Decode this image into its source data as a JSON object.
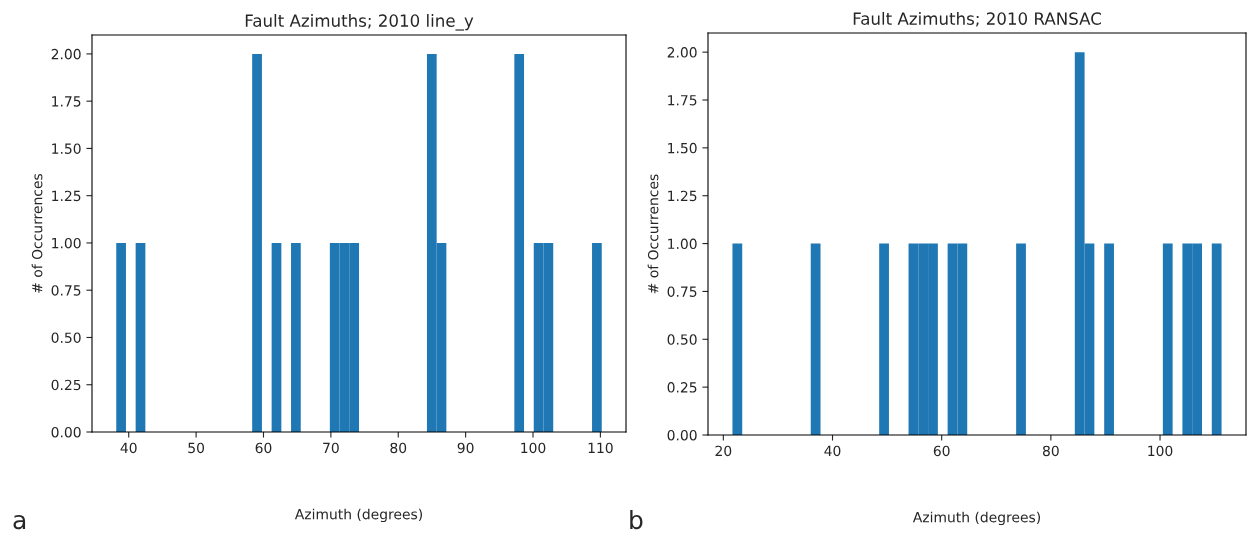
{
  "chart_data": [
    {
      "type": "histogram",
      "title": "Fault Azimuths; 2010 line_y",
      "xlabel": "Azimuth (degrees)",
      "ylabel": "# of Occurrences",
      "color": "#1f77b4",
      "bins": [
        38.15,
        39.59,
        41.03,
        42.47,
        43.91,
        45.36,
        46.8,
        48.24,
        49.68,
        51.12,
        52.56,
        54.0,
        55.44,
        56.88,
        58.32,
        59.77,
        61.21,
        62.65,
        64.09,
        65.53,
        66.97,
        68.41,
        69.85,
        71.29,
        72.73,
        74.18,
        75.62,
        77.06,
        78.5,
        79.94,
        81.38,
        82.82,
        84.26,
        85.7,
        87.14,
        88.59,
        90.03,
        91.47,
        92.91,
        94.35,
        95.79,
        97.23,
        98.67,
        100.11,
        101.55,
        103.0,
        104.44,
        105.88,
        107.32,
        108.76,
        110.2
      ],
      "values": [
        1,
        0,
        1,
        0,
        0,
        0,
        0,
        0,
        0,
        0,
        0,
        0,
        0,
        0,
        2,
        0,
        1,
        0,
        1,
        0,
        0,
        0,
        1,
        1,
        1,
        0,
        0,
        0,
        0,
        0,
        0,
        0,
        2,
        1,
        0,
        0,
        0,
        0,
        0,
        0,
        0,
        2,
        0,
        1,
        1,
        0,
        0,
        0,
        0,
        1
      ],
      "xlim": [
        34.55,
        113.8
      ],
      "xticks": [
        40,
        50,
        60,
        70,
        80,
        90,
        100,
        110
      ],
      "ylim": [
        0,
        2.1
      ],
      "yticks": [
        {
          "value": 0,
          "label": "0.00"
        },
        {
          "value": 0.25,
          "label": "0.25"
        },
        {
          "value": 0.5,
          "label": "0.50"
        },
        {
          "value": 0.75,
          "label": "0.75"
        },
        {
          "value": 1,
          "label": "1.00"
        },
        {
          "value": 1.25,
          "label": "1.25"
        },
        {
          "value": 1.5,
          "label": "1.50"
        },
        {
          "value": 1.75,
          "label": "1.75"
        },
        {
          "value": 2,
          "label": "2.00"
        }
      ],
      "grid": false,
      "annotations": [
        "a"
      ]
    },
    {
      "type": "histogram",
      "title": "Fault Azimuths; 2010 RANSAC",
      "xlabel": "Azimuth (degrees)",
      "ylabel": "# of Occurrences",
      "color": "#1f77b4",
      "bins": [
        21.67,
        23.46,
        25.25,
        27.05,
        28.84,
        30.63,
        32.42,
        34.21,
        36.01,
        37.8,
        39.59,
        41.38,
        43.17,
        44.97,
        46.76,
        48.55,
        50.34,
        52.13,
        53.93,
        55.72,
        57.51,
        59.3,
        61.09,
        62.89,
        64.68,
        66.47,
        68.26,
        70.05,
        71.85,
        73.64,
        75.43,
        77.22,
        79.01,
        80.81,
        82.6,
        84.39,
        86.18,
        87.97,
        89.77,
        91.56,
        93.35,
        95.14,
        96.93,
        98.73,
        100.52,
        102.31,
        104.1,
        105.89,
        107.69,
        109.48,
        111.27
      ],
      "values": [
        1,
        0,
        0,
        0,
        0,
        0,
        0,
        0,
        1,
        0,
        0,
        0,
        0,
        0,
        0,
        1,
        0,
        0,
        1,
        1,
        1,
        0,
        1,
        1,
        0,
        0,
        0,
        0,
        0,
        1,
        0,
        0,
        0,
        0,
        0,
        2,
        1,
        0,
        1,
        0,
        0,
        0,
        0,
        0,
        1,
        0,
        1,
        1,
        0,
        1
      ],
      "xlim": [
        17.19,
        115.75
      ],
      "xticks": [
        20,
        40,
        60,
        80,
        100
      ],
      "ylim": [
        0,
        2.1
      ],
      "yticks": [
        {
          "value": 0,
          "label": "0.00"
        },
        {
          "value": 0.25,
          "label": "0.25"
        },
        {
          "value": 0.5,
          "label": "0.50"
        },
        {
          "value": 0.75,
          "label": "0.75"
        },
        {
          "value": 1,
          "label": "1.00"
        },
        {
          "value": 1.25,
          "label": "1.25"
        },
        {
          "value": 1.5,
          "label": "1.50"
        },
        {
          "value": 1.75,
          "label": "1.75"
        },
        {
          "value": 2,
          "label": "2.00"
        }
      ],
      "grid": false,
      "annotations": [
        "b"
      ]
    }
  ]
}
